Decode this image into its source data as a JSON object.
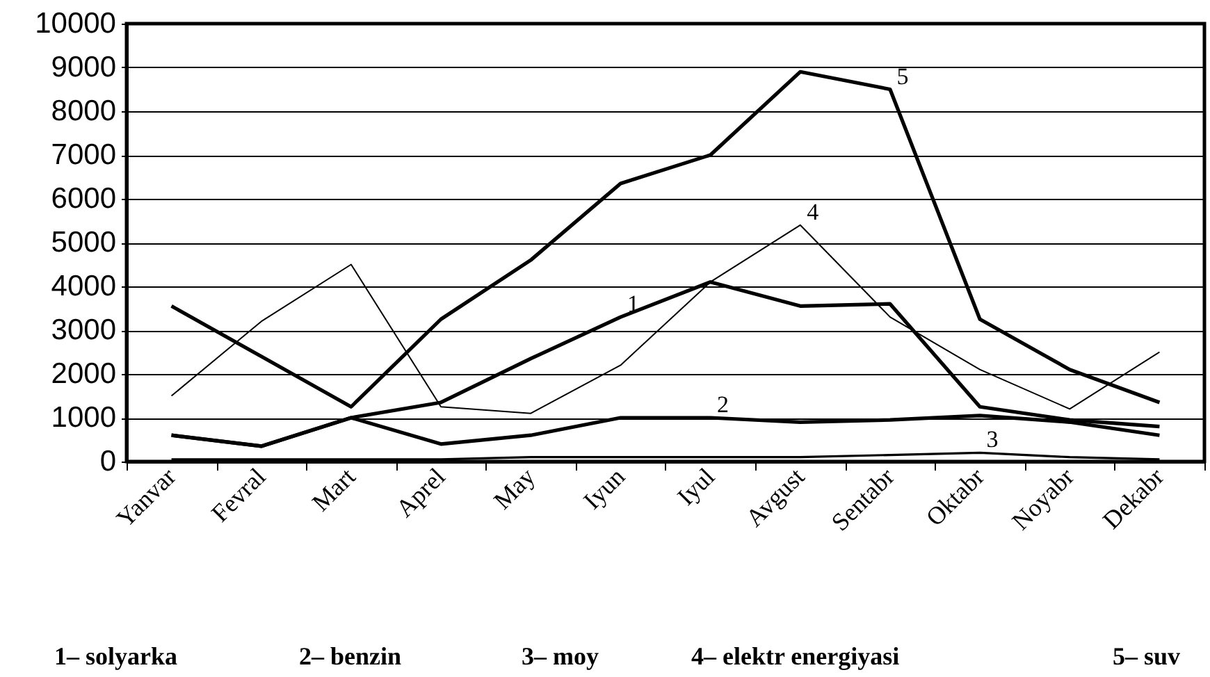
{
  "chart_data": {
    "type": "line",
    "categories": [
      "Yanvar",
      "Fevral",
      "Mart",
      "Aprel",
      "May",
      "Iyun",
      "Iyul",
      "Avgust",
      "Sentabr",
      "Oktabr",
      "Noyabr",
      "Dekabr"
    ],
    "series": [
      {
        "color": "#000000",
        "values": [
          600,
          350,
          1000,
          1350,
          2350,
          3300,
          4100,
          3550,
          3600,
          1250,
          950,
          800
        ]
      },
      {
        "color": "#000000",
        "values": [
          600,
          350,
          1000,
          400,
          600,
          1000,
          1000,
          900,
          950,
          1050,
          900,
          600
        ]
      },
      {
        "color": "#000000",
        "values": [
          50,
          50,
          50,
          50,
          100,
          100,
          100,
          100,
          150,
          200,
          100,
          50
        ]
      },
      {
        "color": "#000000",
        "values": [
          1500,
          3200,
          4500,
          1250,
          1100,
          2200,
          4100,
          5400,
          3300,
          2100,
          1200,
          2500
        ]
      },
      {
        "color": "#000000",
        "values": [
          3550,
          2400,
          1250,
          3250,
          4600,
          6350,
          7000,
          8900,
          8500,
          3250,
          2100,
          1350
        ]
      }
    ],
    "ylim": [
      0,
      10000
    ],
    "yticks": [
      0,
      1000,
      2000,
      3000,
      4000,
      5000,
      6000,
      7000,
      8000,
      9000,
      10000
    ],
    "grid": "y",
    "line_style": "solid",
    "annotations": [
      {
        "text": "1",
        "x": "Iyun",
        "y": 3300
      },
      {
        "text": "2",
        "x": "Iyul",
        "y": 1000
      },
      {
        "text": "3",
        "x": "Oktabr",
        "y": 200
      },
      {
        "text": "4",
        "x": "Avgust",
        "y": 5400
      },
      {
        "text": "5",
        "x": "Sentabr",
        "y": 8500
      },
      "1– solyarka",
      "2– benzin",
      "3– moy",
      "4– elektr energiyasi",
      "5– suv"
    ]
  }
}
